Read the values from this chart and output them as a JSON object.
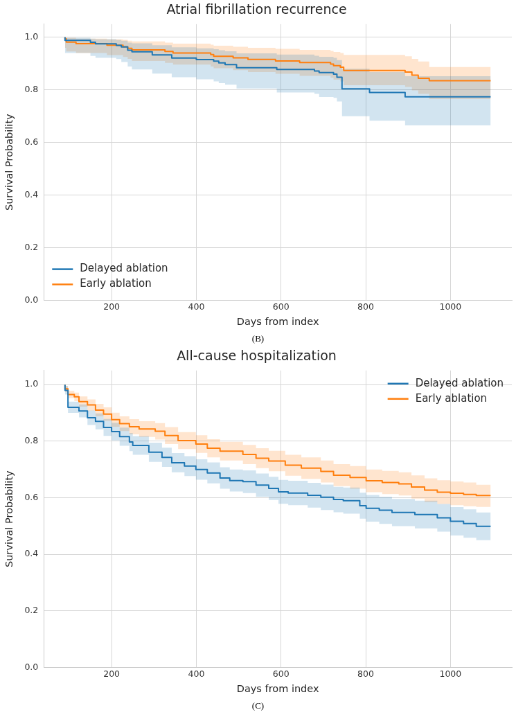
{
  "chart_data": [
    {
      "type": "step",
      "title": "Atrial fibrillation recurrence",
      "xlabel": "Days from index",
      "ylabel": "Survival Probability",
      "xlim": [
        40,
        1145
      ],
      "xticks": [
        200,
        400,
        600,
        800,
        1000
      ],
      "ylim": [
        0,
        1.05
      ],
      "yticks": [
        {
          "value": 0,
          "label": "0.0"
        },
        {
          "value": 0.2,
          "label": "0.2"
        },
        {
          "value": 0.4,
          "label": "0.4"
        },
        {
          "value": 0.6,
          "label": "0.6"
        },
        {
          "value": 0.8,
          "label": "0.8"
        },
        {
          "value": 1,
          "label": "1.0"
        }
      ],
      "grid": true,
      "legend": "bottom left",
      "marker": "none",
      "line_style": "solid",
      "annotations": [
        "(B)"
      ],
      "series": [
        {
          "name": "Delayed ablation",
          "color": "#1f77b4",
          "x": [
            90,
            150,
            162,
            211,
            223,
            238,
            248,
            296,
            342,
            400,
            441,
            453,
            468,
            495,
            590,
            679,
            690,
            724,
            732,
            744,
            809,
            893,
            931,
            1095
          ],
          "values": [
            1,
            0.988,
            0.981,
            0.975,
            0.969,
            0.963,
            0.951,
            0.945,
            0.933,
            0.921,
            0.915,
            0.909,
            0.903,
            0.896,
            0.884,
            0.878,
            0.872,
            0.866,
            0.86,
            0.848,
            0.804,
            0.79,
            0.774,
            0.774
          ],
          "lower": [
            1,
            0.94,
            0.929,
            0.922,
            0.917,
            0.906,
            0.889,
            0.878,
            0.862,
            0.848,
            0.84,
            0.832,
            0.826,
            0.82,
            0.805,
            0.79,
            0.785,
            0.773,
            0.77,
            0.756,
            0.7,
            0.683,
            0.665,
            0.665
          ],
          "upper": [
            1,
            0.998,
            0.995,
            0.993,
            0.99,
            0.987,
            0.98,
            0.977,
            0.97,
            0.962,
            0.958,
            0.955,
            0.951,
            0.947,
            0.939,
            0.934,
            0.93,
            0.926,
            0.922,
            0.913,
            0.88,
            0.868,
            0.852,
            0.852
          ]
        },
        {
          "name": "Early ablation",
          "color": "#ff7f0e",
          "x": [
            90,
            93,
            116,
            189,
            227,
            238,
            248,
            326,
            345,
            434,
            441,
            487,
            522,
            587,
            644,
            717,
            724,
            740,
            748,
            893,
            909,
            924,
            950,
            973,
            1095
          ],
          "values": [
            1,
            0.994,
            0.982,
            0.976,
            0.97,
            0.964,
            0.958,
            0.952,
            0.946,
            0.94,
            0.934,
            0.928,
            0.922,
            0.916,
            0.91,
            0.904,
            0.898,
            0.892,
            0.886,
            0.874,
            0.868,
            0.856,
            0.844,
            0.835,
            0.835
          ],
          "lower": [
            1,
            0.96,
            0.946,
            0.94,
            0.932,
            0.925,
            0.918,
            0.91,
            0.903,
            0.896,
            0.889,
            0.882,
            0.875,
            0.868,
            0.861,
            0.853,
            0.846,
            0.839,
            0.832,
            0.818,
            0.811,
            0.798,
            0.785,
            0.765,
            0.765
          ],
          "upper": [
            1,
            1,
            0.998,
            0.995,
            0.992,
            0.99,
            0.987,
            0.984,
            0.98,
            0.976,
            0.972,
            0.968,
            0.964,
            0.96,
            0.956,
            0.952,
            0.948,
            0.944,
            0.94,
            0.933,
            0.928,
            0.918,
            0.908,
            0.887,
            0.887
          ]
        }
      ]
    },
    {
      "type": "step",
      "title": "All-cause hospitalization",
      "xlabel": "Days from index",
      "ylabel": "Survival Probability",
      "xlim": [
        40,
        1145
      ],
      "xticks": [
        200,
        400,
        600,
        800,
        1000
      ],
      "ylim": [
        0,
        1.05
      ],
      "yticks": [
        {
          "value": 0,
          "label": "0.0"
        },
        {
          "value": 0.2,
          "label": "0.2"
        },
        {
          "value": 0.4,
          "label": "0.4"
        },
        {
          "value": 0.6,
          "label": "0.6"
        },
        {
          "value": 0.8,
          "label": "0.8"
        },
        {
          "value": 1,
          "label": "1.0"
        }
      ],
      "grid": true,
      "legend": "top right",
      "marker": "none",
      "line_style": "solid",
      "annotations": [
        "(C)"
      ],
      "series": [
        {
          "name": "Delayed ablation",
          "color": "#1f77b4",
          "x": [
            90,
            97,
            123,
            143,
            162,
            181,
            200,
            219,
            242,
            250,
            288,
            319,
            342,
            372,
            399,
            426,
            456,
            479,
            510,
            541,
            571,
            594,
            617,
            663,
            694,
            724,
            747,
            786,
            801,
            832,
            862,
            916,
            969,
            1000,
            1031,
            1061,
            1095
          ],
          "values": [
            1,
            0.98,
            0.92,
            0.907,
            0.883,
            0.87,
            0.849,
            0.834,
            0.816,
            0.797,
            0.785,
            0.761,
            0.743,
            0.724,
            0.712,
            0.7,
            0.688,
            0.67,
            0.661,
            0.657,
            0.645,
            0.633,
            0.621,
            0.617,
            0.609,
            0.602,
            0.594,
            0.59,
            0.572,
            0.563,
            0.556,
            0.548,
            0.541,
            0.529,
            0.517,
            0.509,
            0.499
          ],
          "lower": [
            1,
            0.965,
            0.9,
            0.884,
            0.857,
            0.842,
            0.819,
            0.803,
            0.784,
            0.765,
            0.752,
            0.727,
            0.709,
            0.69,
            0.677,
            0.664,
            0.651,
            0.632,
            0.622,
            0.617,
            0.604,
            0.592,
            0.579,
            0.574,
            0.565,
            0.557,
            0.549,
            0.544,
            0.526,
            0.516,
            0.508,
            0.5,
            0.492,
            0.48,
            0.467,
            0.459,
            0.45
          ],
          "upper": [
            1,
            0.995,
            0.94,
            0.93,
            0.909,
            0.898,
            0.879,
            0.865,
            0.848,
            0.829,
            0.818,
            0.795,
            0.777,
            0.758,
            0.747,
            0.736,
            0.725,
            0.708,
            0.7,
            0.697,
            0.686,
            0.674,
            0.663,
            0.66,
            0.653,
            0.647,
            0.639,
            0.636,
            0.618,
            0.61,
            0.604,
            0.596,
            0.59,
            0.578,
            0.567,
            0.559,
            0.548
          ]
        },
        {
          "name": "Early ablation",
          "color": "#ff7f0e",
          "x": [
            90,
            97,
            112,
            123,
            143,
            162,
            181,
            200,
            219,
            242,
            265,
            303,
            326,
            357,
            399,
            426,
            456,
            510,
            541,
            571,
            610,
            648,
            694,
            724,
            763,
            801,
            839,
            878,
            908,
            939,
            969,
            1000,
            1031,
            1061,
            1095
          ],
          "values": [
            1,
            0.985,
            0.965,
            0.957,
            0.94,
            0.928,
            0.91,
            0.896,
            0.876,
            0.862,
            0.851,
            0.843,
            0.835,
            0.82,
            0.802,
            0.79,
            0.775,
            0.765,
            0.753,
            0.74,
            0.73,
            0.715,
            0.705,
            0.693,
            0.68,
            0.672,
            0.66,
            0.654,
            0.649,
            0.638,
            0.627,
            0.62,
            0.616,
            0.612,
            0.608
          ],
          "lower": [
            1,
            0.975,
            0.952,
            0.942,
            0.922,
            0.908,
            0.888,
            0.872,
            0.851,
            0.836,
            0.824,
            0.815,
            0.806,
            0.79,
            0.772,
            0.759,
            0.743,
            0.732,
            0.719,
            0.705,
            0.694,
            0.678,
            0.667,
            0.654,
            0.641,
            0.632,
            0.62,
            0.613,
            0.608,
            0.597,
            0.585,
            0.578,
            0.574,
            0.57,
            0.568
          ],
          "upper": [
            1,
            0.995,
            0.978,
            0.972,
            0.958,
            0.948,
            0.932,
            0.92,
            0.901,
            0.888,
            0.878,
            0.871,
            0.864,
            0.85,
            0.832,
            0.821,
            0.807,
            0.798,
            0.787,
            0.775,
            0.766,
            0.752,
            0.743,
            0.732,
            0.719,
            0.712,
            0.7,
            0.695,
            0.69,
            0.679,
            0.669,
            0.662,
            0.658,
            0.654,
            0.646
          ]
        }
      ]
    }
  ]
}
